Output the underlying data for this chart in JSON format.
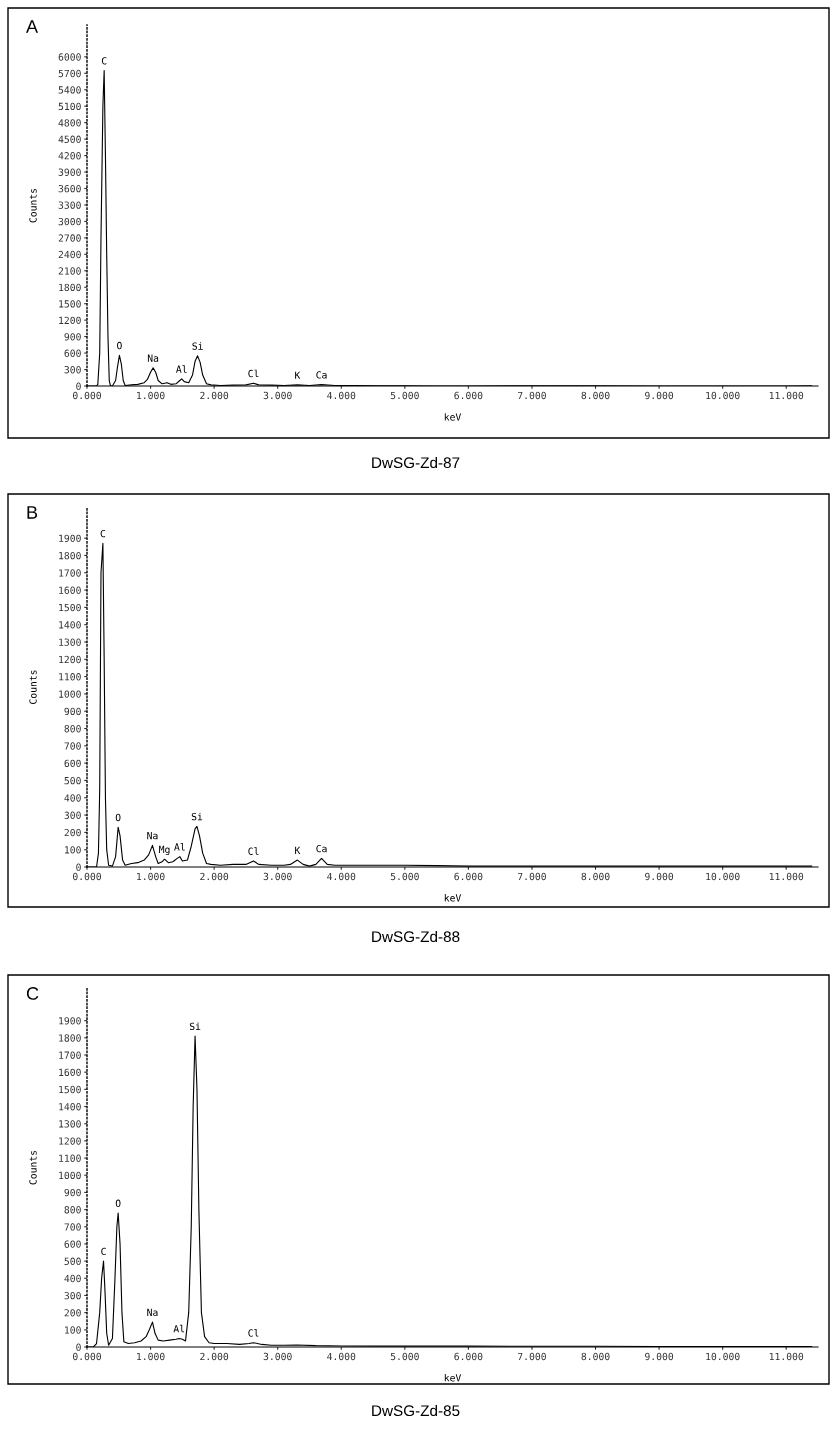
{
  "chart_data": [
    {
      "type": "line",
      "title": "A",
      "xlabel": "keV",
      "ylabel": "Counts",
      "x": [
        0,
        0.15,
        0.17,
        0.2,
        0.22,
        0.25,
        0.27,
        0.29,
        0.31,
        0.33,
        0.35,
        0.37,
        0.4,
        0.45,
        0.48,
        0.51,
        0.54,
        0.57,
        0.6,
        0.7,
        0.8,
        0.9,
        0.95,
        1.0,
        1.04,
        1.08,
        1.12,
        1.18,
        1.26,
        1.32,
        1.4,
        1.46,
        1.49,
        1.53,
        1.6,
        1.66,
        1.7,
        1.74,
        1.78,
        1.82,
        1.88,
        1.95,
        2.1,
        2.3,
        2.5,
        2.62,
        2.7,
        2.9,
        3.1,
        3.31,
        3.5,
        3.69,
        3.9,
        4.2,
        4.6,
        5.0,
        5.5,
        6.0,
        7.0,
        8.0,
        9.0,
        10.0,
        11.0,
        11.4
      ],
      "series": [
        {
          "color": "#000000",
          "values": [
            0,
            0,
            30,
            600,
            2700,
            5100,
            5750,
            4200,
            2400,
            900,
            100,
            0,
            0,
            100,
            350,
            560,
            400,
            100,
            10,
            20,
            30,
            60,
            120,
            250,
            330,
            250,
            100,
            40,
            60,
            30,
            40,
            100,
            130,
            80,
            60,
            200,
            450,
            550,
            430,
            200,
            40,
            20,
            10,
            15,
            20,
            50,
            20,
            15,
            10,
            20,
            10,
            25,
            10,
            10,
            5,
            5,
            0,
            0,
            5,
            5,
            0,
            0,
            0,
            5
          ]
        }
      ],
      "xlim": [
        0,
        11.5
      ],
      "ylim": [
        0,
        6580
      ],
      "xticks": [
        {
          "value": 0,
          "label": "0.000"
        },
        {
          "value": 1,
          "label": "1.000"
        },
        {
          "value": 2,
          "label": "2.000"
        },
        {
          "value": 3,
          "label": "3.000"
        },
        {
          "value": 4,
          "label": "4.000"
        },
        {
          "value": 5,
          "label": "5.000"
        },
        {
          "value": 6,
          "label": "6.000"
        },
        {
          "value": 7,
          "label": "7.000"
        },
        {
          "value": 8,
          "label": "8.000"
        },
        {
          "value": 9,
          "label": "9.000"
        },
        {
          "value": 10,
          "label": "10.000"
        },
        {
          "value": 11,
          "label": "11.000"
        }
      ],
      "yticks": [
        0,
        300,
        600,
        900,
        1200,
        1500,
        1800,
        2100,
        2400,
        2700,
        3000,
        3300,
        3600,
        3900,
        4200,
        4500,
        4800,
        5100,
        5400,
        5700,
        6000
      ],
      "annotations": [
        {
          "text": "C",
          "x": 0.27,
          "y": 5750
        },
        {
          "text": "O",
          "x": 0.51,
          "y": 560
        },
        {
          "text": "Na",
          "x": 1.04,
          "y": 330
        },
        {
          "text": "Al",
          "x": 1.49,
          "y": 130
        },
        {
          "text": "Si",
          "x": 1.74,
          "y": 550
        },
        {
          "text": "Cl",
          "x": 2.62,
          "y": 50
        },
        {
          "text": "K",
          "x": 3.31,
          "y": 20
        },
        {
          "text": "Ca",
          "x": 3.69,
          "y": 25
        },
        "DwSG-Zd-87"
      ]
    },
    {
      "type": "line",
      "title": "B",
      "xlabel": "keV",
      "ylabel": "Counts",
      "x": [
        0,
        0.15,
        0.18,
        0.2,
        0.22,
        0.25,
        0.27,
        0.29,
        0.31,
        0.34,
        0.4,
        0.45,
        0.49,
        0.52,
        0.56,
        0.6,
        0.7,
        0.8,
        0.9,
        0.97,
        1.03,
        1.08,
        1.12,
        1.18,
        1.22,
        1.28,
        1.35,
        1.42,
        1.46,
        1.5,
        1.58,
        1.64,
        1.7,
        1.73,
        1.77,
        1.82,
        1.88,
        1.95,
        2.1,
        2.3,
        2.5,
        2.62,
        2.7,
        2.9,
        3.1,
        3.2,
        3.31,
        3.4,
        3.5,
        3.6,
        3.69,
        3.78,
        3.9,
        4.2,
        4.5,
        5,
        5.5,
        6,
        7,
        8,
        9,
        10,
        11,
        11.4
      ],
      "series": [
        {
          "color": "#000000",
          "values": [
            0,
            0,
            80,
            450,
            1700,
            1870,
            1200,
            400,
            100,
            10,
            5,
            60,
            230,
            180,
            40,
            10,
            20,
            25,
            40,
            70,
            125,
            60,
            20,
            30,
            45,
            25,
            30,
            50,
            60,
            35,
            40,
            120,
            220,
            235,
            180,
            80,
            20,
            15,
            10,
            15,
            15,
            35,
            15,
            10,
            10,
            15,
            40,
            15,
            5,
            15,
            50,
            15,
            10,
            10,
            10,
            10,
            8,
            5,
            5,
            5,
            5,
            5,
            5,
            5
          ]
        }
      ],
      "xlim": [
        0,
        11.5
      ],
      "ylim": [
        0,
        2080
      ],
      "xticks": [
        {
          "value": 0,
          "label": "0.000"
        },
        {
          "value": 1,
          "label": "1.000"
        },
        {
          "value": 2,
          "label": "2.000"
        },
        {
          "value": 3,
          "label": "3.000"
        },
        {
          "value": 4,
          "label": "4.000"
        },
        {
          "value": 5,
          "label": "5.000"
        },
        {
          "value": 6,
          "label": "6.000"
        },
        {
          "value": 7,
          "label": "7.000"
        },
        {
          "value": 8,
          "label": "8.000"
        },
        {
          "value": 9,
          "label": "9.000"
        },
        {
          "value": 10,
          "label": "10.000"
        },
        {
          "value": 11,
          "label": "11.000"
        }
      ],
      "yticks": [
        0,
        100,
        200,
        300,
        400,
        500,
        600,
        700,
        800,
        900,
        1000,
        1100,
        1200,
        1300,
        1400,
        1500,
        1600,
        1700,
        1800,
        1900
      ],
      "annotations": [
        {
          "text": "C",
          "x": 0.25,
          "y": 1870
        },
        {
          "text": "O",
          "x": 0.49,
          "y": 230
        },
        {
          "text": "Na",
          "x": 1.03,
          "y": 125
        },
        {
          "text": "Mg",
          "x": 1.22,
          "y": 45
        },
        {
          "text": "Al",
          "x": 1.46,
          "y": 60
        },
        {
          "text": "Si",
          "x": 1.73,
          "y": 235
        },
        {
          "text": "Cl",
          "x": 2.62,
          "y": 35
        },
        {
          "text": "K",
          "x": 3.31,
          "y": 40
        },
        {
          "text": "Ca",
          "x": 3.69,
          "y": 50
        },
        "DwSG-Zd-88"
      ]
    },
    {
      "type": "line",
      "title": "C",
      "xlabel": "keV",
      "ylabel": "Counts",
      "x": [
        0,
        0.1,
        0.15,
        0.2,
        0.23,
        0.26,
        0.28,
        0.31,
        0.34,
        0.4,
        0.44,
        0.47,
        0.49,
        0.52,
        0.55,
        0.58,
        0.65,
        0.75,
        0.85,
        0.93,
        0.98,
        1.03,
        1.07,
        1.12,
        1.2,
        1.3,
        1.4,
        1.45,
        1.5,
        1.55,
        1.6,
        1.64,
        1.67,
        1.7,
        1.73,
        1.76,
        1.8,
        1.85,
        1.92,
        2.0,
        2.2,
        2.4,
        2.55,
        2.62,
        2.75,
        2.9,
        3.1,
        3.3,
        3.6,
        4.0,
        4.5,
        5,
        6,
        7,
        8,
        9,
        10,
        11,
        11.4
      ],
      "series": [
        {
          "color": "#000000",
          "values": [
            0,
            0,
            20,
            200,
            400,
            500,
            350,
            80,
            10,
            50,
            400,
            700,
            780,
            600,
            200,
            30,
            20,
            25,
            35,
            60,
            100,
            145,
            80,
            40,
            35,
            40,
            45,
            50,
            45,
            35,
            200,
            700,
            1400,
            1810,
            1500,
            800,
            200,
            60,
            25,
            20,
            20,
            15,
            20,
            25,
            15,
            10,
            10,
            12,
            8,
            6,
            5,
            5,
            5,
            4,
            4,
            3,
            3,
            3,
            3
          ]
        }
      ],
      "xlim": [
        0,
        11.5
      ],
      "ylim": [
        0,
        2090
      ],
      "xticks": [
        {
          "value": 0,
          "label": "0.000"
        },
        {
          "value": 1,
          "label": "1.000"
        },
        {
          "value": 2,
          "label": "2.000"
        },
        {
          "value": 3,
          "label": "3.000"
        },
        {
          "value": 4,
          "label": "4.000"
        },
        {
          "value": 5,
          "label": "5.000"
        },
        {
          "value": 6,
          "label": "6.000"
        },
        {
          "value": 7,
          "label": "7.000"
        },
        {
          "value": 8,
          "label": "8.000"
        },
        {
          "value": 9,
          "label": "9.000"
        },
        {
          "value": 10,
          "label": "10.000"
        },
        {
          "value": 11,
          "label": "11.000"
        }
      ],
      "yticks": [
        0,
        100,
        200,
        300,
        400,
        500,
        600,
        700,
        800,
        900,
        1000,
        1100,
        1200,
        1300,
        1400,
        1500,
        1600,
        1700,
        1800,
        1900
      ],
      "annotations": [
        {
          "text": "C",
          "x": 0.26,
          "y": 500
        },
        {
          "text": "O",
          "x": 0.49,
          "y": 780
        },
        {
          "text": "Na",
          "x": 1.03,
          "y": 145
        },
        {
          "text": "Al",
          "x": 1.45,
          "y": 50
        },
        {
          "text": "Si",
          "x": 1.7,
          "y": 1810
        },
        {
          "text": "Cl",
          "x": 2.62,
          "y": 25
        },
        "DwSG-Zd-85"
      ]
    }
  ]
}
